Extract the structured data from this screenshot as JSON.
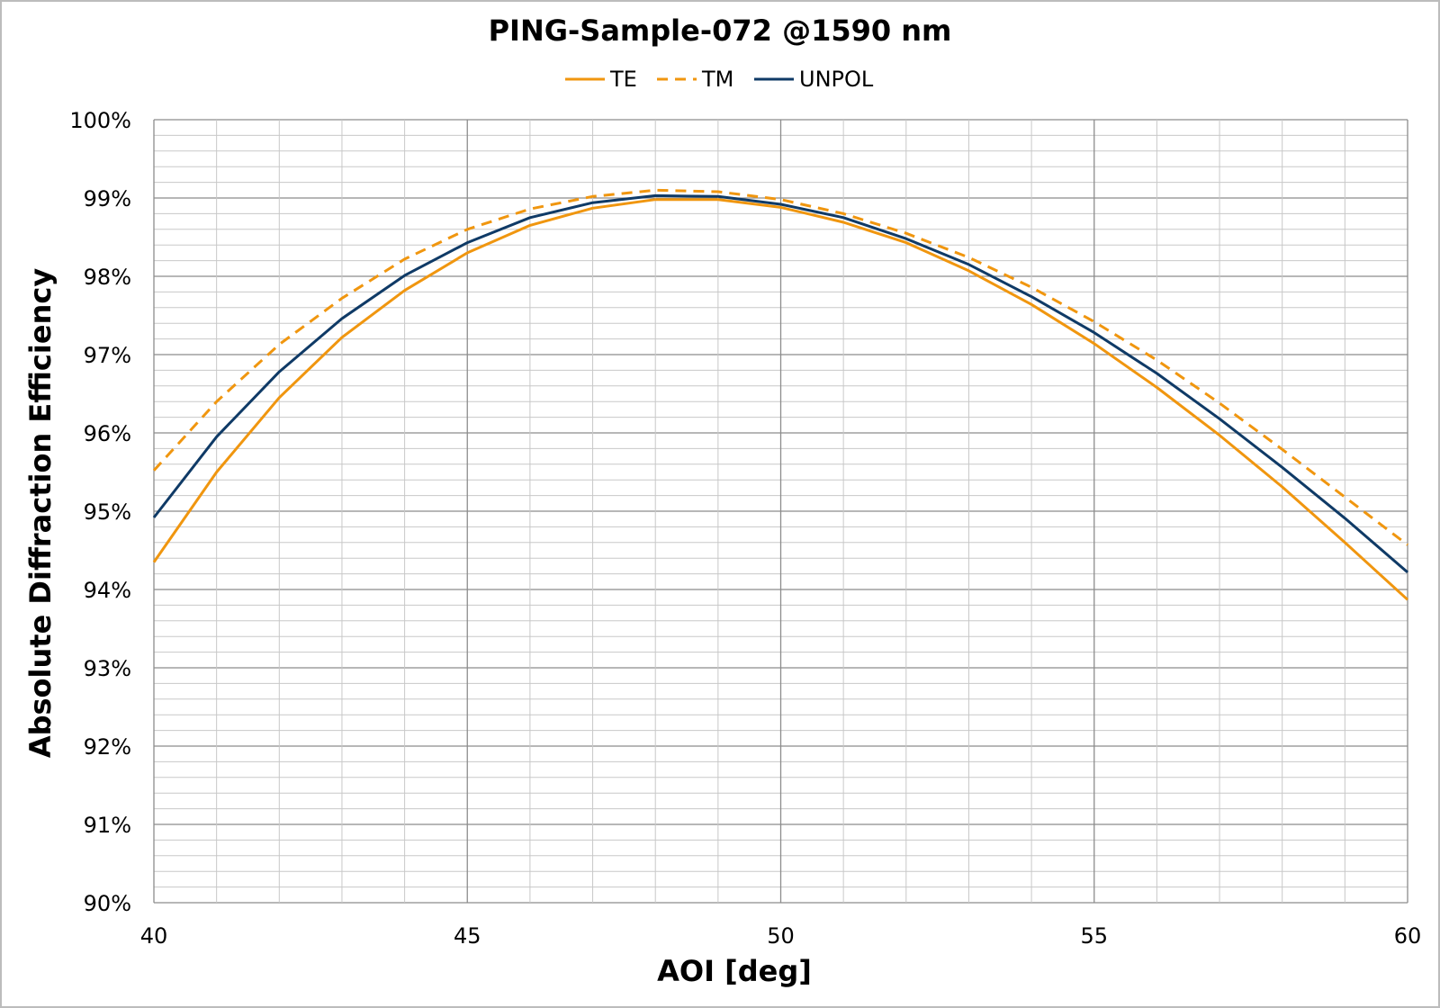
{
  "chart_data": {
    "type": "line",
    "title": "PING-Sample-072 @1590 nm",
    "xlabel": "AOI [deg]",
    "ylabel": "Absolute Diffraction Efficiency",
    "xlim": [
      40,
      60
    ],
    "ylim": [
      90,
      100
    ],
    "x_ticks": [
      "40",
      "45",
      "50",
      "55",
      "60"
    ],
    "y_ticks": [
      "90%",
      "91%",
      "92%",
      "93%",
      "94%",
      "95%",
      "96%",
      "97%",
      "98%",
      "99%",
      "100%"
    ],
    "grid": true,
    "legend_position": "top",
    "x": [
      40,
      41,
      42,
      43,
      44,
      45,
      46,
      47,
      48,
      49,
      50,
      51,
      52,
      53,
      54,
      55,
      56,
      57,
      58,
      59,
      60
    ],
    "series": [
      {
        "name": "TE",
        "color": "#f0960f",
        "dash": "solid",
        "values": [
          94.35,
          95.5,
          96.45,
          97.22,
          97.82,
          98.3,
          98.65,
          98.87,
          98.98,
          98.98,
          98.88,
          98.69,
          98.43,
          98.07,
          97.64,
          97.14,
          96.58,
          95.97,
          95.31,
          94.6,
          93.87
        ]
      },
      {
        "name": "TM",
        "color": "#f0960f",
        "dash": "dashed",
        "values": [
          95.52,
          96.4,
          97.13,
          97.72,
          98.22,
          98.6,
          98.86,
          99.02,
          99.1,
          99.08,
          98.98,
          98.8,
          98.55,
          98.24,
          97.86,
          97.42,
          96.93,
          96.38,
          95.79,
          95.18,
          94.57
        ]
      },
      {
        "name": "UNPOL",
        "color": "#0f3a66",
        "dash": "solid",
        "values": [
          94.92,
          95.95,
          96.78,
          97.46,
          98.01,
          98.43,
          98.75,
          98.94,
          99.03,
          99.02,
          98.92,
          98.75,
          98.48,
          98.15,
          97.74,
          97.28,
          96.76,
          96.18,
          95.56,
          94.91,
          94.22
        ]
      }
    ]
  }
}
